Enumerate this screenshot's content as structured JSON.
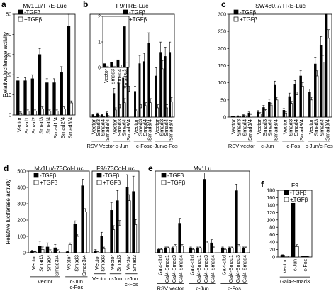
{
  "chart_data": [
    {
      "id": "a",
      "panel_letter": "a",
      "type": "bar",
      "title": "Mv1Lu/TRE-Luc",
      "ylabel": "Relative luciferase activity",
      "ylim": [
        0,
        50
      ],
      "yticks": [
        "0",
        "10",
        "20",
        "30",
        "40",
        "50"
      ],
      "legend": [
        "-TGFβ",
        "+TGFβ"
      ],
      "legend_position": "top-left",
      "categories": [
        "Vector",
        "Smad1",
        "Smad2",
        "Smad3",
        "Smad4",
        "Smad1/4",
        "Smad2/4",
        "Smad3/4"
      ],
      "series": [
        {
          "name": "-TGFβ",
          "values": [
            17,
            17,
            18,
            30,
            16,
            16,
            21,
            44
          ],
          "errors": [
            1.5,
            1.5,
            2,
            3,
            2,
            2,
            3,
            6
          ]
        },
        {
          "name": "+TGFβ",
          "values": [
            1,
            2,
            2,
            3,
            2,
            2,
            3,
            6
          ],
          "errors": [
            0.5,
            0.5,
            0.5,
            1,
            0.5,
            0.5,
            1,
            1
          ]
        }
      ]
    },
    {
      "id": "b",
      "panel_letter": "b",
      "type": "bar",
      "title": "F9/TRE-Luc",
      "ylim": [
        0,
        10
      ],
      "legend": [
        "-TGFβ",
        "+TGFβ"
      ],
      "legend_position": "top-right",
      "categories": [
        "Vector",
        "Smad3",
        "Smad4",
        "Smad3/4",
        "Vector",
        "Smad3",
        "Smad4",
        "Smad3/4",
        "Vector",
        "Smad3",
        "Smad4",
        "Smad3/4",
        "Vector",
        "Smad3",
        "Smad4",
        "Smad3/4"
      ],
      "groups": [
        {
          "label": "RSV Vector",
          "count": 4
        },
        {
          "label": "c-Jun",
          "count": 4
        },
        {
          "label": "c-Fos",
          "count": 4
        },
        {
          "label": "c-Jun/c-Fos",
          "count": 4
        }
      ],
      "series": [
        {
          "name": "-TGFβ",
          "values": [
            0.2,
            0.3,
            0.2,
            0.4,
            2.3,
            3.3,
            3.8,
            5.2,
            2.5,
            5.2,
            5.4,
            7.2,
            4.0,
            6.3,
            5.9,
            6.3
          ],
          "errors": [
            0.05,
            0.1,
            0.05,
            0.1,
            0.5,
            0.6,
            0.7,
            0.8,
            0.5,
            0.8,
            0.8,
            1.0,
            0.8,
            1.0,
            0.9,
            1.0
          ]
        },
        {
          "name": "+TGFβ",
          "values": [
            0.05,
            0.1,
            0.05,
            0.1,
            0.7,
            0.9,
            1.4,
            2.5,
            0.6,
            0.9,
            1.1,
            1.4,
            0.9,
            4.7,
            0.9,
            1.5
          ],
          "errors": [
            0.02,
            0.05,
            0.02,
            0.05,
            0.2,
            0.3,
            0.4,
            0.5,
            0.2,
            0.3,
            0.3,
            0.4,
            0.3,
            0.8,
            0.3,
            0.4
          ]
        }
      ],
      "inset": {
        "yticks": [
          "0",
          "1",
          "2"
        ],
        "ylim": [
          0,
          2
        ],
        "categories": [
          "Vector",
          "Smad3",
          "Smad4",
          "Smad3/4"
        ],
        "series": [
          {
            "name": "-TGFβ",
            "values": [
              0.15,
              0.2,
              0.3,
              1.6
            ]
          },
          {
            "name": "+TGFβ",
            "values": [
              0.05,
              0.05,
              0.1,
              0.2
            ]
          }
        ]
      }
    },
    {
      "id": "c",
      "panel_letter": "c",
      "type": "bar",
      "title": "SW480.7/TRE-Luc",
      "ylim": [
        0,
        300
      ],
      "yticks": [
        "0",
        "50",
        "100",
        "150",
        "200",
        "250",
        "300"
      ],
      "legend": [
        "-TGFβ",
        "+TGFβ"
      ],
      "legend_position": "top-left",
      "categories": [
        "Vector",
        "Smad3",
        "Smad4",
        "Smad3/4",
        "Vector",
        "Smad3",
        "Smad4",
        "Smad3/4",
        "Vector",
        "Smad3",
        "Smad4",
        "Smad3/4",
        "Vector",
        "Smad3",
        "Smad4",
        "Smad3/4"
      ],
      "groups": [
        {
          "label": "RSV vector",
          "count": 4
        },
        {
          "label": "c-Jun",
          "count": 4
        },
        {
          "label": "c-Fos",
          "count": 4
        },
        {
          "label": "c-Jun/c-Fos",
          "count": 4
        }
      ],
      "series": [
        {
          "name": "-TGFβ",
          "values": [
            2,
            3,
            5,
            12,
            15,
            28,
            44,
            93,
            20,
            60,
            95,
            120,
            72,
            155,
            210,
            325
          ],
          "errors": [
            1,
            1,
            2,
            3,
            4,
            6,
            8,
            12,
            5,
            10,
            12,
            15,
            10,
            20,
            25,
            30
          ]
        },
        {
          "name": "+TGFβ",
          "values": [
            1,
            2,
            3,
            8,
            10,
            18,
            35,
            50,
            12,
            40,
            65,
            90,
            50,
            120,
            160,
            230
          ],
          "errors": [
            0.5,
            1,
            1,
            2,
            3,
            4,
            6,
            8,
            3,
            6,
            8,
            10,
            8,
            15,
            20,
            25
          ]
        }
      ]
    },
    {
      "id": "d1",
      "panel_letter": "d",
      "type": "bar",
      "title": "Mv1Lu/-73Col-Luc",
      "ylabel": "Relative luciferase activity",
      "ylim": [
        0,
        500
      ],
      "yticks": [
        "0",
        "100",
        "200",
        "300",
        "400",
        "500"
      ],
      "legend": [
        "-TGFβ",
        "+TGFβ"
      ],
      "legend_position": "top-left",
      "categories": [
        "Vector",
        "Smad3",
        "Smad4",
        "Smad3/4",
        "Vector",
        "Smad3",
        "Smad3/4"
      ],
      "groups": [
        {
          "label": "Vector",
          "count": 4
        },
        {
          "label": "c-Jun\nc-Fos",
          "count": 3
        }
      ],
      "series": [
        {
          "name": "-TGFβ",
          "values": [
            10,
            40,
            35,
            30,
            5,
            175,
            410
          ],
          "errors": [
            5,
            30,
            25,
            20,
            3,
            20,
            40
          ]
        },
        {
          "name": "+TGFβ",
          "values": [
            5,
            20,
            10,
            10,
            50,
            100,
            250
          ],
          "errors": [
            3,
            15,
            8,
            8,
            10,
            15,
            20
          ]
        }
      ]
    },
    {
      "id": "d2",
      "panel_letter": "",
      "type": "bar",
      "title": "F9/-73Col-Luc",
      "ylim": [
        0,
        16
      ],
      "legend": [
        "-TGFβ",
        "+TGFβ"
      ],
      "legend_position": "top-left",
      "categories": [
        "Vector",
        "Smad3",
        "Vector",
        "Smad3",
        "Vector",
        "Smad3"
      ],
      "groups": [
        {
          "label": "Vector",
          "count": 2
        },
        {
          "label": "c-Jun",
          "count": 2
        },
        {
          "label": "c-Jun\nc-Fos",
          "count": 2
        }
      ],
      "series": [
        {
          "name": "-TGFβ",
          "values": [
            0.4,
            3.2,
            8.3,
            10.2,
            12.8,
            12.0
          ],
          "errors": [
            0.2,
            0.8,
            1.5,
            2.0,
            2.5,
            3.0
          ]
        },
        {
          "name": "+TGFβ",
          "values": [
            0.2,
            0.8,
            4.5,
            5.3,
            10.2,
            5.5
          ],
          "errors": [
            0.1,
            0.3,
            0.8,
            1.0,
            1.2,
            1.0
          ]
        }
      ]
    },
    {
      "id": "e",
      "panel_letter": "e",
      "type": "bar",
      "title": "Mv1Lu",
      "ylim": [
        0,
        50
      ],
      "legend": [
        "-TGFβ",
        "+TGFβ"
      ],
      "legend_position": "top-left",
      "categories": [
        "Gal4-dbd",
        "Gal4-Smad1",
        "Gal4-Smad3",
        "Gal4-Smad4",
        "Gal4-dbd",
        "Gal4-Smad1",
        "Gal4-Smad3",
        "Gal4-Smad4",
        "Gal4-dbd",
        "Gal4-Smad1",
        "Gal4-Smad3",
        "Gal4-Smad4"
      ],
      "groups": [
        {
          "label": "RSV vector",
          "count": 4
        },
        {
          "label": "c-Jun",
          "count": 4
        },
        {
          "label": "c-Fos",
          "count": 4
        }
      ],
      "series": [
        {
          "name": "-TGFβ",
          "values": [
            2,
            3,
            3,
            18,
            3,
            3,
            45,
            6,
            3,
            3,
            38,
            3
          ],
          "errors": [
            0.5,
            0.5,
            0.5,
            3,
            0.5,
            0.5,
            4,
            2,
            0.5,
            0.5,
            4,
            0.5
          ]
        },
        {
          "name": "+TGFβ",
          "values": [
            2,
            3,
            4,
            4,
            2,
            3,
            6,
            3,
            2,
            3,
            4,
            3
          ],
          "errors": [
            0.5,
            0.5,
            1,
            1,
            0.5,
            0.5,
            1,
            1,
            0.5,
            0.5,
            1,
            0.5
          ]
        }
      ]
    },
    {
      "id": "f",
      "panel_letter": "f",
      "type": "bar",
      "title": "F9",
      "ylim": [
        0,
        180
      ],
      "yticks": [
        "0",
        "20",
        "40",
        "60",
        "80",
        "100",
        "120",
        "140",
        "160",
        "180"
      ],
      "legend": [
        "-TGFβ",
        "+TGFβ"
      ],
      "legend_position": "top-left",
      "categories": [
        "Vector",
        "c-Jun",
        "c-Fos"
      ],
      "groups": [
        {
          "label": "Gal4-Smad3",
          "count": 3
        }
      ],
      "series": [
        {
          "name": "-TGFβ",
          "values": [
            5,
            145,
            2
          ],
          "errors": [
            1,
            5,
            1
          ]
        },
        {
          "name": "+TGFβ",
          "values": [
            2,
            28,
            1
          ],
          "errors": [
            1,
            5,
            0.5
          ]
        }
      ]
    }
  ]
}
